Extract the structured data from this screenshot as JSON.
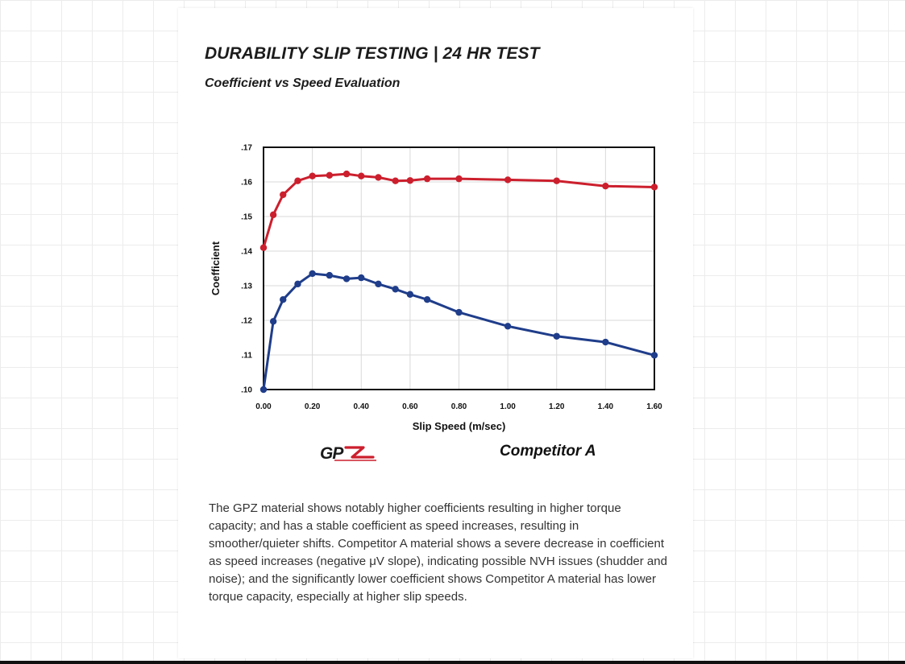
{
  "header": {
    "title": "DURABILITY SLIP TESTING | 24 HR TEST",
    "subtitle": "Coefficient vs Speed Evaluation"
  },
  "chart_data": {
    "type": "line",
    "title": "",
    "xlabel": "Slip Speed (m/sec)",
    "ylabel": "Coefficient",
    "xlim": [
      0,
      1.6
    ],
    "ylim": [
      0.1,
      0.17
    ],
    "x_ticks": [
      0,
      0.2,
      0.4,
      0.6,
      0.8,
      1.0,
      1.2,
      1.4,
      1.6
    ],
    "x_tick_labels": [
      "0.00",
      "0.20",
      "0.40",
      "0.60",
      "0.80",
      "1.00",
      "1.20",
      "1.40",
      "1.60"
    ],
    "y_ticks": [
      0.1,
      0.11,
      0.12,
      0.13,
      0.14,
      0.15,
      0.16,
      0.17
    ],
    "y_tick_labels": [
      ".10",
      ".11",
      ".12",
      ".13",
      ".14",
      ".15",
      ".16",
      ".17"
    ],
    "grid": true,
    "series": [
      {
        "name": "GPZ",
        "color": "#cc1f2d",
        "x": [
          0.0,
          0.04,
          0.08,
          0.14,
          0.2,
          0.27,
          0.34,
          0.4,
          0.47,
          0.54,
          0.6,
          0.67,
          0.8,
          1.0,
          1.2,
          1.4,
          1.6
        ],
        "y": [
          0.141,
          0.1505,
          0.1563,
          0.1603,
          0.1617,
          0.1619,
          0.1623,
          0.1617,
          0.1613,
          0.1603,
          0.1604,
          0.1609,
          0.1609,
          0.1606,
          0.1603,
          0.1588,
          0.1585
        ]
      },
      {
        "name": "Competitor A",
        "color": "#1f3d8a",
        "x": [
          0.0,
          0.04,
          0.08,
          0.14,
          0.2,
          0.27,
          0.34,
          0.4,
          0.47,
          0.54,
          0.6,
          0.67,
          0.8,
          1.0,
          1.2,
          1.4,
          1.6
        ],
        "y": [
          0.1,
          0.1197,
          0.126,
          0.1305,
          0.1335,
          0.133,
          0.132,
          0.1323,
          0.1305,
          0.129,
          0.1275,
          0.126,
          0.1223,
          0.1183,
          0.1154,
          0.1137,
          0.1099
        ]
      }
    ]
  },
  "legend": {
    "logo_text": "GPZ",
    "competitor_label": "Competitor A"
  },
  "description": "The GPZ material shows notably higher coefficients resulting in higher torque capacity; and has a stable coefficient as speed increases, resulting in smoother/quieter shifts.  Competitor A material shows a severe decrease in coefficient as speed increases (negative μV slope), indicating possible NVH issues (shudder and noise); and the significantly lower coefficient shows Competitor A material has lower torque capacity, especially at higher slip speeds."
}
